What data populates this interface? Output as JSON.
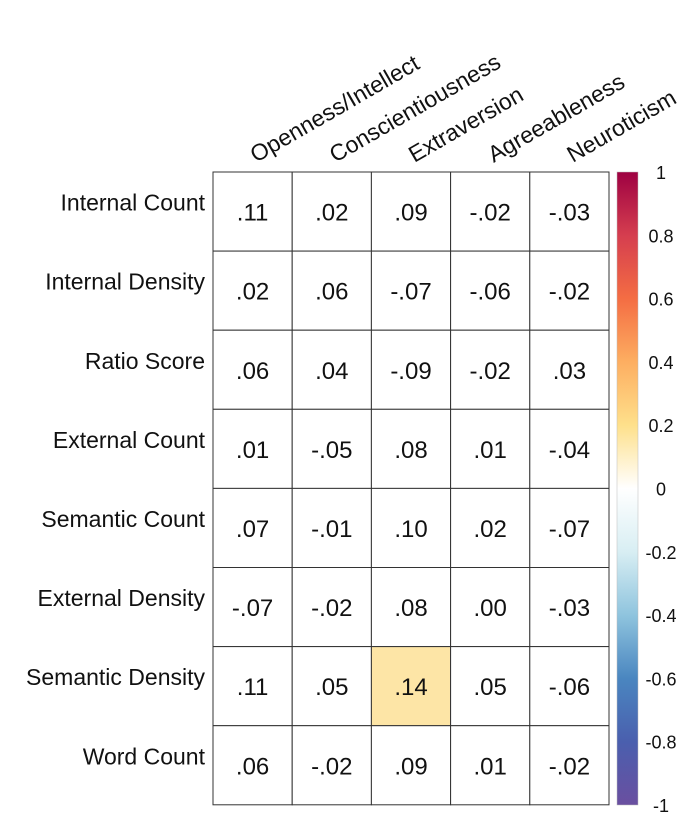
{
  "chart_data": {
    "type": "heatmap",
    "columns": [
      "Openness/Intellect",
      "Conscientiousness",
      "Extraversion",
      "Agreeableness",
      "Neuroticism"
    ],
    "rows": [
      "Internal Count",
      "Internal Density",
      "Ratio Score",
      "External Count",
      "Semantic Count",
      "External Density",
      "Semantic Density",
      "Word Count"
    ],
    "values": [
      [
        0.11,
        0.02,
        0.09,
        -0.02,
        -0.03
      ],
      [
        0.02,
        0.06,
        -0.07,
        -0.06,
        -0.02
      ],
      [
        0.06,
        0.04,
        -0.09,
        -0.02,
        0.03
      ],
      [
        0.01,
        -0.05,
        0.08,
        0.01,
        -0.04
      ],
      [
        0.07,
        -0.01,
        0.1,
        0.02,
        -0.07
      ],
      [
        -0.07,
        -0.02,
        0.08,
        0.0,
        -0.03
      ],
      [
        0.11,
        0.05,
        0.14,
        0.05,
        -0.06
      ],
      [
        0.06,
        -0.02,
        0.09,
        0.01,
        -0.02
      ]
    ],
    "labels": [
      [
        ".11",
        ".02",
        ".09",
        "-.02",
        "-.03"
      ],
      [
        ".02",
        ".06",
        "-.07",
        "-.06",
        "-.02"
      ],
      [
        ".06",
        ".04",
        "-.09",
        "-.02",
        ".03"
      ],
      [
        ".01",
        "-.05",
        ".08",
        ".01",
        "-.04"
      ],
      [
        ".07",
        "-.01",
        ".10",
        ".02",
        "-.07"
      ],
      [
        "-.07",
        "-.02",
        ".08",
        ".00",
        "-.03"
      ],
      [
        ".11",
        ".05",
        ".14",
        ".05",
        "-.06"
      ],
      [
        ".06",
        "-.02",
        ".09",
        ".01",
        "-.02"
      ]
    ],
    "highlighted": [
      [
        6,
        2
      ]
    ],
    "highlight_color": "#fde5a6",
    "colorbar": {
      "range": [
        -1,
        1
      ],
      "ticks": [
        "1",
        "0.8",
        "0.6",
        "0.4",
        "0.2",
        "0",
        "-0.2",
        "-0.4",
        "-0.6",
        "-0.8",
        "-1"
      ],
      "colors": [
        "#9e0142",
        "#d53e4f",
        "#f46d43",
        "#fdae61",
        "#fee08b",
        "#ffffff",
        "#e6f598",
        "#abdda4",
        "#66c2a5",
        "#3288bd",
        "#5e4fa2"
      ]
    },
    "grid": true,
    "legend": "right"
  }
}
